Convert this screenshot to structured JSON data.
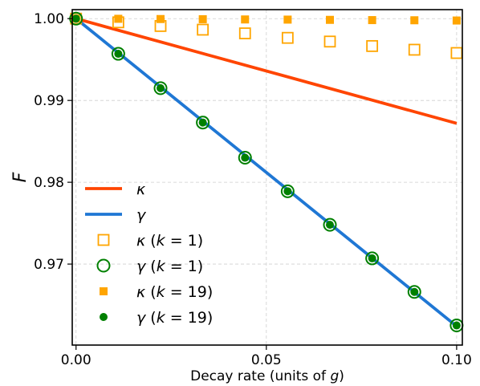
{
  "chart_data": {
    "type": "scatter",
    "xlabel": "Decay rate (units of g)",
    "ylabel": "F",
    "xlim": [
      -0.001,
      0.1015
    ],
    "ylim": [
      0.9601,
      1.0011
    ],
    "xticks": [
      0.0,
      0.05,
      0.1
    ],
    "xtick_labels": [
      "0.00",
      "0.05",
      "0.10"
    ],
    "yticks": [
      0.97,
      0.98,
      0.99,
      1.0
    ],
    "ytick_labels": [
      "0.97",
      "0.98",
      "0.99",
      "1.00"
    ],
    "grid": true,
    "legend_position": "lower-left",
    "series": [
      {
        "name": "κ",
        "kind": "line",
        "color": "#ff4500",
        "x": [
          0.0,
          0.1
        ],
        "y": [
          1.0,
          0.9872
        ]
      },
      {
        "name": "γ",
        "kind": "line",
        "color": "#1f77d4",
        "x": [
          0.0,
          0.1
        ],
        "y": [
          1.0,
          0.9624
        ]
      },
      {
        "name": "κ (k = 1)",
        "kind": "marker",
        "marker": "open-square",
        "color": "#ffa500",
        "x": [
          0.0,
          0.0111,
          0.0222,
          0.0333,
          0.0444,
          0.0556,
          0.0667,
          0.0778,
          0.0889,
          0.1
        ],
        "y": [
          1.0,
          0.99955,
          0.9991,
          0.99865,
          0.9982,
          0.99765,
          0.9972,
          0.99665,
          0.9962,
          0.9958
        ]
      },
      {
        "name": "γ (k = 1)",
        "kind": "marker",
        "marker": "open-circle",
        "color": "#008000",
        "x": [
          0.0,
          0.0111,
          0.0222,
          0.0333,
          0.0444,
          0.0556,
          0.0667,
          0.0778,
          0.0889,
          0.1
        ],
        "y": [
          1.0,
          0.9957,
          0.9915,
          0.9873,
          0.983,
          0.9789,
          0.9748,
          0.9707,
          0.9666,
          0.9625
        ]
      },
      {
        "name": "κ (k = 19)",
        "kind": "marker",
        "marker": "filled-square",
        "color": "#ffa500",
        "x": [
          0.0,
          0.0111,
          0.0222,
          0.0333,
          0.0444,
          0.0556,
          0.0667,
          0.0778,
          0.0889,
          0.1
        ],
        "y": [
          1.0,
          0.99998,
          0.99995,
          0.99993,
          0.9999,
          0.99988,
          0.99985,
          0.99982,
          0.9998,
          0.99977
        ]
      },
      {
        "name": "γ (k = 19)",
        "kind": "marker",
        "marker": "filled-circle",
        "color": "#008000",
        "x": [
          0.0,
          0.0111,
          0.0222,
          0.0333,
          0.0444,
          0.0556,
          0.0667,
          0.0778,
          0.0889,
          0.1
        ],
        "y": [
          1.0,
          0.9957,
          0.9915,
          0.9873,
          0.983,
          0.9789,
          0.9748,
          0.9707,
          0.9666,
          0.9625
        ]
      }
    ]
  }
}
